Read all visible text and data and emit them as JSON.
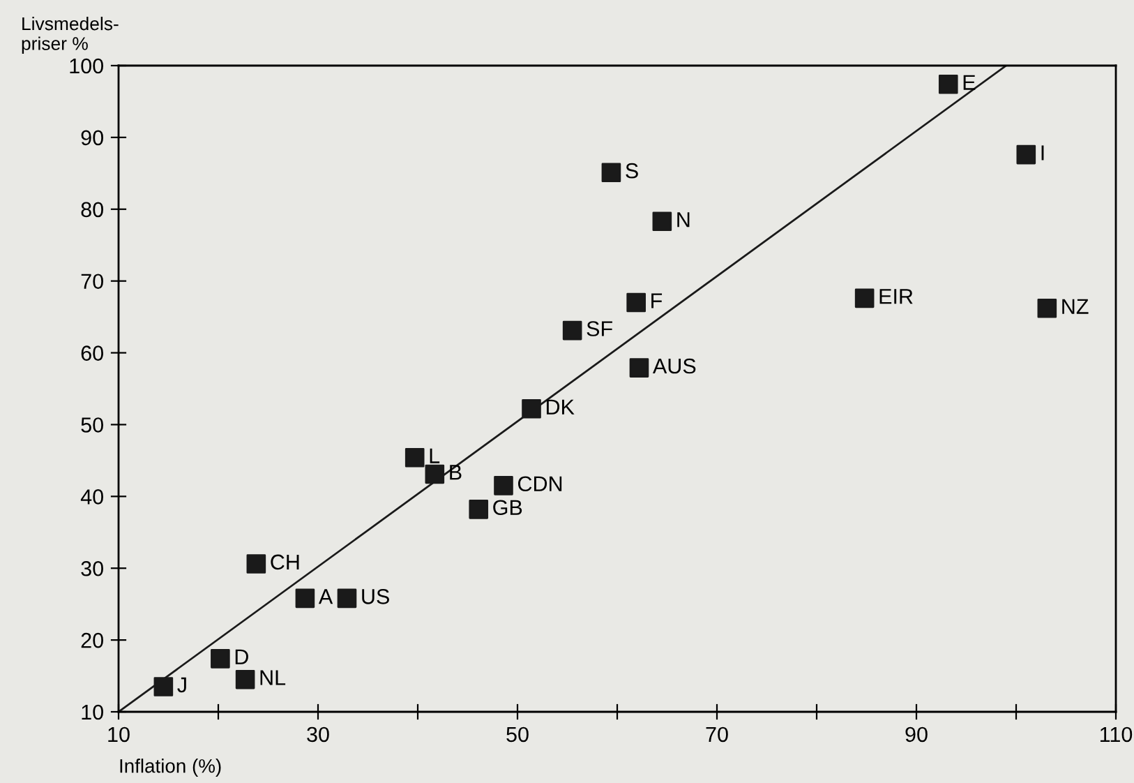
{
  "chart_data": {
    "type": "scatter",
    "xlabel": "Inflation (%)",
    "ylabel": "Livsmedels-\npriser %",
    "grid": false,
    "legend": false,
    "xlim": [
      10,
      110
    ],
    "ylim": [
      10,
      100
    ],
    "xticks": [
      10,
      {
        "value": 20,
        "label": null
      },
      30,
      {
        "value": 40,
        "label": null
      },
      50,
      {
        "value": 60,
        "label": null
      },
      70,
      {
        "value": 80,
        "label": null
      },
      90,
      {
        "value": 100,
        "label": null
      },
      110
    ],
    "yticks": [
      10,
      20,
      30,
      40,
      50,
      60,
      70,
      80,
      90,
      100
    ],
    "series": [
      {
        "marker": "square",
        "color": "#1a1a1a",
        "x": [
          14.5,
          20.2,
          22.7,
          23.8,
          28.7,
          32.9,
          46.1,
          48.6,
          41.7,
          39.7,
          51.4,
          55.5,
          62.2,
          61.9,
          84.8,
          103.1,
          59.4,
          64.5,
          93.2,
          101.0
        ],
        "values": [
          13.5,
          17.4,
          14.5,
          30.6,
          25.8,
          25.8,
          38.2,
          41.5,
          43.1,
          45.4,
          52.2,
          63.1,
          57.9,
          67.0,
          67.6,
          66.2,
          85.1,
          78.3,
          97.4,
          87.6
        ]
      },
      {
        "type": "line",
        "marker": "none",
        "color": "#1a1a1a",
        "x": [
          10,
          99
        ],
        "values": [
          10,
          100
        ]
      }
    ],
    "annotations": [
      {
        "text": "J",
        "x": 14.5,
        "y": 13.5
      },
      {
        "text": "D",
        "x": 20.2,
        "y": 17.4
      },
      {
        "text": "NL",
        "x": 22.7,
        "y": 14.5
      },
      {
        "text": "CH",
        "x": 23.8,
        "y": 30.6
      },
      {
        "text": "A",
        "x": 28.7,
        "y": 25.8
      },
      {
        "text": "US",
        "x": 32.9,
        "y": 25.8
      },
      {
        "text": "GB",
        "x": 46.1,
        "y": 38.2
      },
      {
        "text": "CDN",
        "x": 48.6,
        "y": 41.5
      },
      {
        "text": "B",
        "x": 41.7,
        "y": 43.1
      },
      {
        "text": "L",
        "x": 39.7,
        "y": 45.4
      },
      {
        "text": "DK",
        "x": 51.4,
        "y": 52.2
      },
      {
        "text": "SF",
        "x": 55.5,
        "y": 63.1
      },
      {
        "text": "AUS",
        "x": 62.2,
        "y": 57.9
      },
      {
        "text": "F",
        "x": 61.9,
        "y": 67.0
      },
      {
        "text": "EIR",
        "x": 84.8,
        "y": 67.6
      },
      {
        "text": "NZ",
        "x": 103.1,
        "y": 66.2
      },
      {
        "text": "S",
        "x": 59.4,
        "y": 85.1
      },
      {
        "text": "N",
        "x": 64.5,
        "y": 78.3
      },
      {
        "text": "E",
        "x": 93.2,
        "y": 97.4
      },
      {
        "text": "I",
        "x": 101.0,
        "y": 87.6
      }
    ]
  }
}
